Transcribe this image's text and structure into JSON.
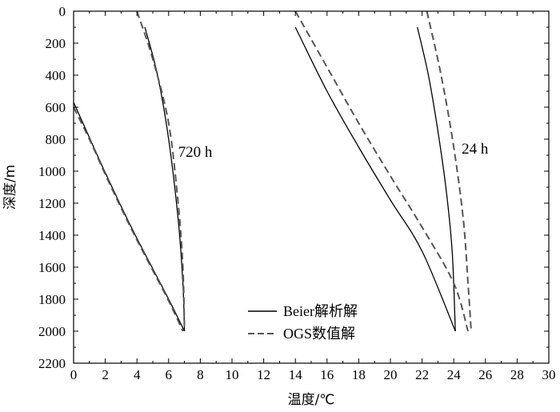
{
  "chart_data": {
    "type": "line",
    "xlabel": "温度/℃",
    "ylabel": "深度/m",
    "xlim": [
      0,
      30
    ],
    "ylim": [
      0,
      2200
    ],
    "y_inverted": true,
    "x_ticks": [
      "0",
      "2",
      "4",
      "6",
      "8",
      "10",
      "12",
      "14",
      "16",
      "18",
      "20",
      "22",
      "24",
      "26",
      "28",
      "30"
    ],
    "y_ticks": [
      "0",
      "200",
      "400",
      "600",
      "800",
      "1000",
      "1200",
      "1400",
      "1600",
      "1800",
      "2000",
      "2200"
    ],
    "grid": false,
    "legend_position": "bottom-center",
    "legend": [
      "Beier解析解",
      "OGS数值解"
    ],
    "annotations": [
      {
        "text": "720 h",
        "x": 6.6,
        "y": 910
      },
      {
        "text": "24 h",
        "x": 24.5,
        "y": 890
      }
    ],
    "series": [
      {
        "name": "Beier解析解",
        "time": "720 h",
        "branch": "outer",
        "style": "solid",
        "points": [
          [
            0.0,
            570
          ],
          [
            1.0,
            790
          ],
          [
            2.0,
            1010
          ],
          [
            3.0,
            1220
          ],
          [
            4.0,
            1420
          ],
          [
            5.0,
            1610
          ],
          [
            6.0,
            1800
          ],
          [
            7.0,
            2000
          ]
        ]
      },
      {
        "name": "Beier解析解",
        "time": "720 h",
        "branch": "inner",
        "style": "solid",
        "points": [
          [
            4.5,
            100
          ],
          [
            5.3,
            400
          ],
          [
            6.0,
            800
          ],
          [
            6.6,
            1300
          ],
          [
            6.9,
            1700
          ],
          [
            7.0,
            2000
          ]
        ]
      },
      {
        "name": "OGS数值解",
        "time": "720 h",
        "branch": "outer",
        "style": "dashed",
        "points": [
          [
            0.0,
            600
          ],
          [
            1.0,
            800
          ],
          [
            2.0,
            1020
          ],
          [
            3.0,
            1230
          ],
          [
            4.0,
            1430
          ],
          [
            5.0,
            1620
          ],
          [
            6.0,
            1810
          ],
          [
            6.9,
            2000
          ]
        ]
      },
      {
        "name": "OGS数值解",
        "time": "720 h",
        "branch": "inner",
        "style": "dashed",
        "points": [
          [
            4.0,
            0
          ],
          [
            5.0,
            300
          ],
          [
            6.0,
            700
          ],
          [
            6.6,
            1200
          ],
          [
            6.9,
            1600
          ],
          [
            7.0,
            2000
          ]
        ]
      },
      {
        "name": "Beier解析解",
        "time": "24 h",
        "branch": "outer",
        "style": "solid",
        "points": [
          [
            14.0,
            100
          ],
          [
            16.0,
            500
          ],
          [
            18.0,
            850
          ],
          [
            20.0,
            1180
          ],
          [
            22.0,
            1500
          ],
          [
            24.1,
            2000
          ]
        ]
      },
      {
        "name": "Beier解析解",
        "time": "24 h",
        "branch": "inner",
        "style": "solid",
        "points": [
          [
            21.7,
            100
          ],
          [
            22.4,
            400
          ],
          [
            23.0,
            750
          ],
          [
            23.5,
            1100
          ],
          [
            23.9,
            1500
          ],
          [
            24.1,
            2000
          ]
        ]
      },
      {
        "name": "OGS数值解",
        "time": "24 h",
        "branch": "outer",
        "style": "dashed",
        "points": [
          [
            14.0,
            0
          ],
          [
            16.0,
            350
          ],
          [
            18.0,
            700
          ],
          [
            20.0,
            1030
          ],
          [
            22.0,
            1350
          ],
          [
            24.0,
            1700
          ],
          [
            24.9,
            2000
          ]
        ]
      },
      {
        "name": "OGS数值解",
        "time": "24 h",
        "branch": "inner",
        "style": "dashed",
        "points": [
          [
            22.3,
            0
          ],
          [
            23.2,
            400
          ],
          [
            24.0,
            850
          ],
          [
            24.6,
            1300
          ],
          [
            24.9,
            1700
          ],
          [
            25.1,
            2000
          ]
        ]
      }
    ]
  }
}
